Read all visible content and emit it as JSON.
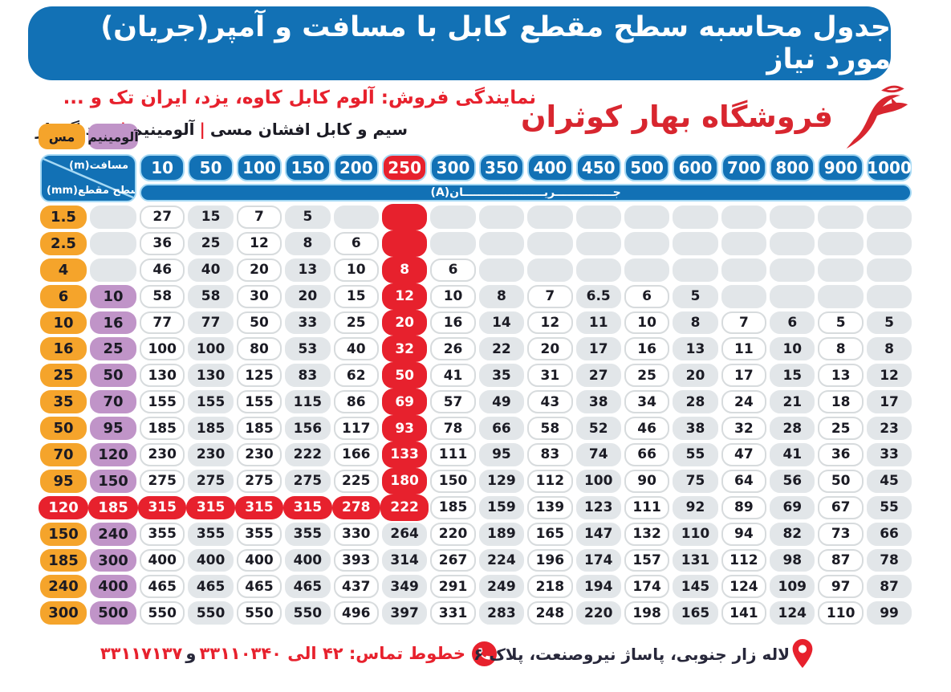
{
  "title": "جدول محاسبه سطح مقطع کابل با مسافت و آمپر(جریان) مورد نیاز",
  "header": {
    "dealer_line": "نمایندگی فروش: آلوم کابل کاوه، یزد، ایران تک و ...",
    "products": {
      "part1": "سیم و کابل افشان مسی",
      "part2": "آلومینیم",
      "part3": "خودنگهدار"
    },
    "store_name": "فروشگاه بهار کوثران"
  },
  "legend": {
    "copper_label": "مس",
    "aluminum_label": "آلومینیم"
  },
  "corner": {
    "distance_label": "مسافت(m)",
    "section_label": "سطح مقطع(mm)"
  },
  "chart_data": {
    "type": "table",
    "title": "جدول محاسبه سطح مقطع کابل با مسافت و آمپر(جریان) مورد نیاز",
    "distance_unit_label": "مسافت(m)",
    "section_unit_label": "سطح مقطع(mm)",
    "current_band_label": "جـــــــــــــــریـــــــــــــــــــــان(A)",
    "distances_m": [
      10,
      50,
      100,
      150,
      200,
      250,
      300,
      350,
      400,
      450,
      500,
      600,
      700,
      800,
      900,
      1000
    ],
    "highlight_distance": 250,
    "rows": [
      {
        "copper_mm2": "1.5",
        "aluminum_mm2": null,
        "amps": [
          27,
          15,
          7,
          5,
          null,
          null,
          null,
          null,
          null,
          null,
          null,
          null,
          null,
          null,
          null,
          null
        ]
      },
      {
        "copper_mm2": "2.5",
        "aluminum_mm2": null,
        "amps": [
          36,
          25,
          12,
          8,
          6,
          null,
          null,
          null,
          null,
          null,
          null,
          null,
          null,
          null,
          null,
          null
        ]
      },
      {
        "copper_mm2": "4",
        "aluminum_mm2": null,
        "amps": [
          46,
          40,
          20,
          13,
          10,
          8,
          6,
          null,
          null,
          null,
          null,
          null,
          null,
          null,
          null,
          null
        ]
      },
      {
        "copper_mm2": "6",
        "aluminum_mm2": "10",
        "amps": [
          58,
          58,
          30,
          20,
          15,
          12,
          10,
          8,
          7,
          6.5,
          6,
          5,
          null,
          null,
          null,
          null
        ]
      },
      {
        "copper_mm2": "10",
        "aluminum_mm2": "16",
        "amps": [
          77,
          77,
          50,
          33,
          25,
          20,
          16,
          14,
          12,
          11,
          10,
          8,
          7,
          6,
          5,
          5
        ]
      },
      {
        "copper_mm2": "16",
        "aluminum_mm2": "25",
        "amps": [
          100,
          100,
          80,
          53,
          40,
          32,
          26,
          22,
          20,
          17,
          16,
          13,
          11,
          10,
          8,
          8
        ]
      },
      {
        "copper_mm2": "25",
        "aluminum_mm2": "50",
        "amps": [
          130,
          130,
          125,
          83,
          62,
          50,
          41,
          35,
          31,
          27,
          25,
          20,
          17,
          15,
          13,
          12
        ]
      },
      {
        "copper_mm2": "35",
        "aluminum_mm2": "70",
        "amps": [
          155,
          155,
          155,
          115,
          86,
          69,
          57,
          49,
          43,
          38,
          34,
          28,
          24,
          21,
          18,
          17
        ]
      },
      {
        "copper_mm2": "50",
        "aluminum_mm2": "95",
        "amps": [
          185,
          185,
          185,
          156,
          117,
          93,
          78,
          66,
          58,
          52,
          46,
          38,
          32,
          28,
          25,
          23
        ]
      },
      {
        "copper_mm2": "70",
        "aluminum_mm2": "120",
        "amps": [
          230,
          230,
          230,
          222,
          166,
          133,
          111,
          95,
          83,
          74,
          66,
          55,
          47,
          41,
          36,
          33
        ]
      },
      {
        "copper_mm2": "95",
        "aluminum_mm2": "150",
        "amps": [
          275,
          275,
          275,
          275,
          225,
          180,
          150,
          129,
          112,
          100,
          90,
          75,
          64,
          56,
          50,
          45
        ]
      },
      {
        "copper_mm2": "120",
        "aluminum_mm2": "185",
        "highlight": true,
        "amps": [
          315,
          315,
          315,
          315,
          278,
          222,
          185,
          159,
          139,
          123,
          111,
          92,
          89,
          69,
          67,
          55
        ]
      },
      {
        "copper_mm2": "150",
        "aluminum_mm2": "240",
        "amps": [
          355,
          355,
          355,
          355,
          330,
          264,
          220,
          189,
          165,
          147,
          132,
          110,
          94,
          82,
          73,
          66
        ]
      },
      {
        "copper_mm2": "185",
        "aluminum_mm2": "300",
        "amps": [
          400,
          400,
          400,
          400,
          393,
          314,
          267,
          224,
          196,
          174,
          157,
          131,
          112,
          98,
          87,
          78
        ]
      },
      {
        "copper_mm2": "240",
        "aluminum_mm2": "400",
        "amps": [
          465,
          465,
          465,
          465,
          437,
          349,
          291,
          249,
          218,
          194,
          174,
          145,
          124,
          109,
          97,
          87
        ]
      },
      {
        "copper_mm2": "300",
        "aluminum_mm2": "500",
        "amps": [
          550,
          550,
          550,
          550,
          496,
          397,
          331,
          283,
          248,
          220,
          198,
          165,
          141,
          124,
          110,
          99
        ]
      }
    ]
  },
  "footer": {
    "phones_main": "خطوط تماس: ۴۲ الی ۳۳۱۱۰۳۴۰",
    "conjunction": "و",
    "phone_secondary": "۳۳۱۱۷۱۳۷",
    "address": "لاله زار جنوبی، پاساژ نیروصنعت، پلاک ۶"
  },
  "colors": {
    "blue": "#1271b5",
    "light_blue_border": "#a6d9f4",
    "red": "#e7212d",
    "orange": "#f5a42b",
    "purple": "#c094c8",
    "cell_gray": "#e2e6e9",
    "logo_red": "#d8262f"
  }
}
